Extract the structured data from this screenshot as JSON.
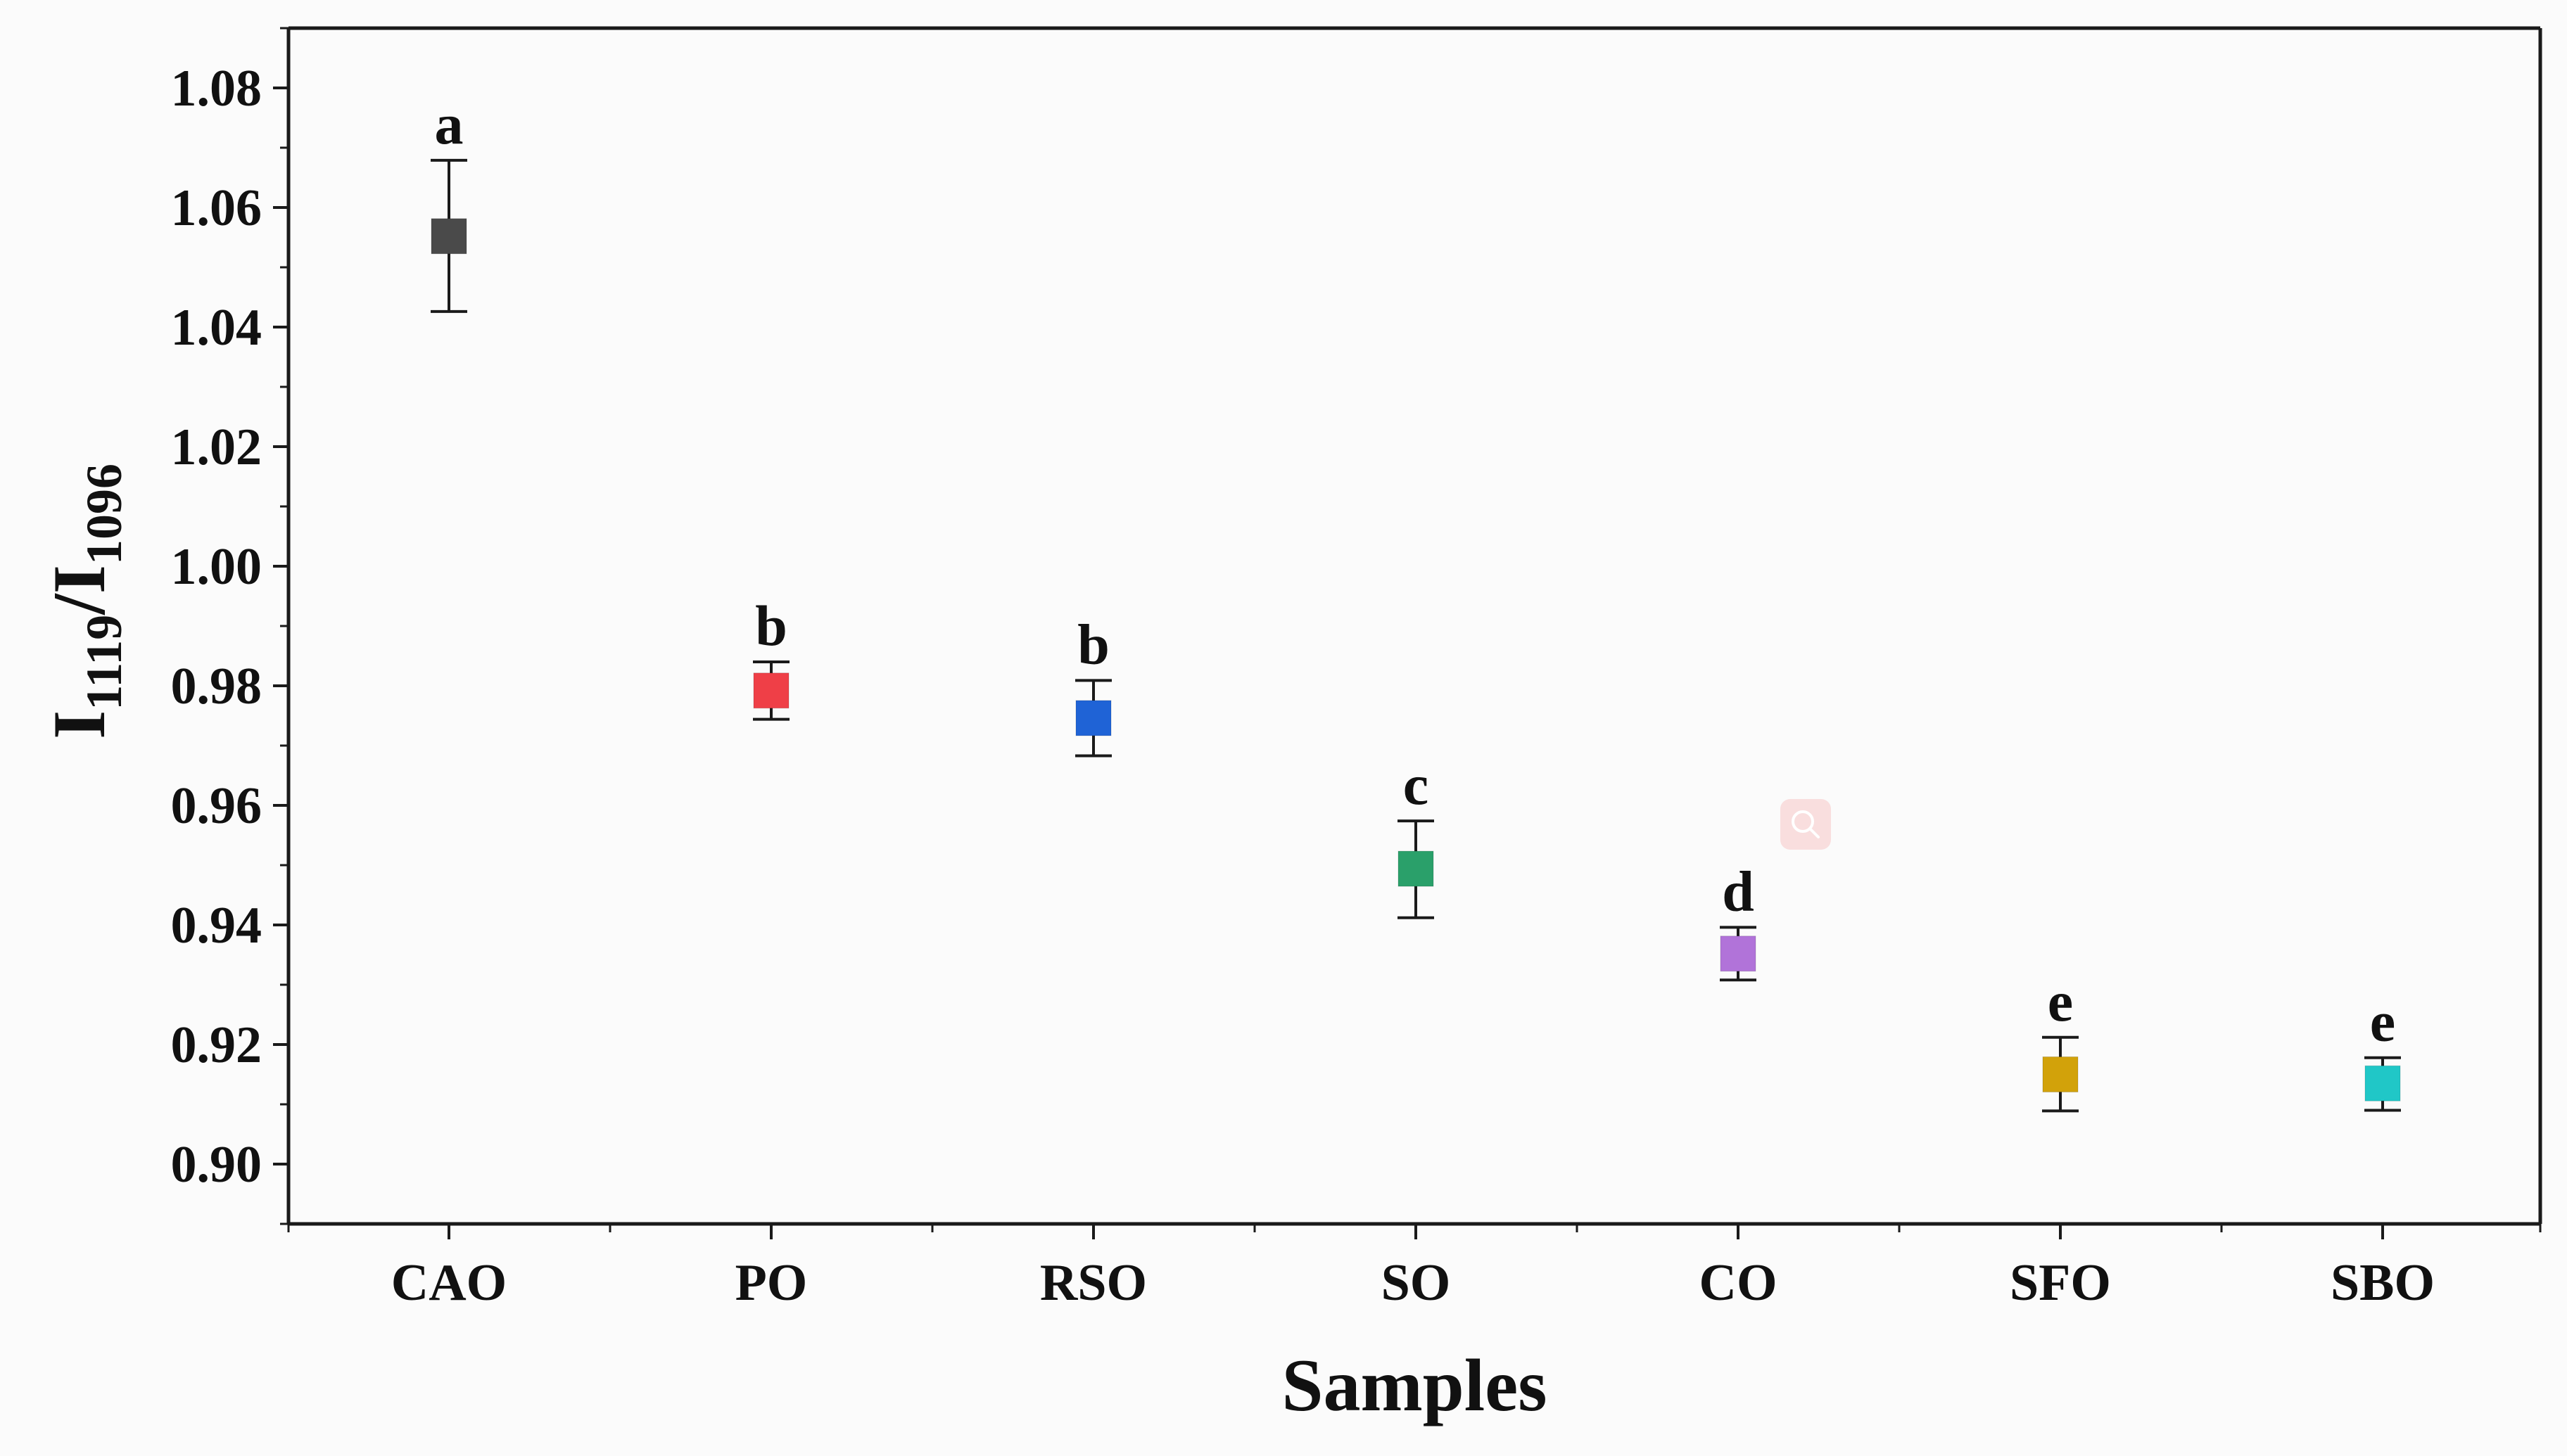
{
  "chart_data": {
    "type": "scatter",
    "title": "",
    "xlabel": "Samples",
    "ylabel": {
      "main_1": "I",
      "sub_1": "1119",
      "separator": "/",
      "main_2": "I",
      "sub_2": "1096"
    },
    "ylim": [
      0.89,
      1.09
    ],
    "yticks": [
      "0.90",
      "0.92",
      "0.94",
      "0.96",
      "0.98",
      "1.00",
      "1.02",
      "1.04",
      "1.06",
      "1.08"
    ],
    "grid": false,
    "legend": "none",
    "categories": [
      "CAO",
      "PO",
      "RSO",
      "SO",
      "CO",
      "SFO",
      "SBO"
    ],
    "series": [
      {
        "name": "I1119/I1096",
        "values": [
          1.0552,
          0.9792,
          0.9746,
          0.9494,
          0.9352,
          0.915,
          0.9135
        ],
        "error_low": [
          1.0426,
          0.9744,
          0.9683,
          0.9412,
          0.9308,
          0.9089,
          0.909
        ],
        "error_high": [
          1.0679,
          0.984,
          0.9809,
          0.9574,
          0.9396,
          0.9212,
          0.9178
        ],
        "group_letters": [
          "a",
          "b",
          "b",
          "c",
          "d",
          "e",
          "e"
        ],
        "colors": [
          "#4a4a4a",
          "#ef3f47",
          "#1f63d6",
          "#2aa06a",
          "#b173d9",
          "#d2a20a",
          "#20c7c7"
        ]
      }
    ]
  },
  "overlay": {
    "icon": "magnifier-icon",
    "color": "#f7c7c7"
  },
  "colors": {
    "background": "#fbfbfb",
    "axis": "#1a1a1a",
    "text": "#111111"
  }
}
